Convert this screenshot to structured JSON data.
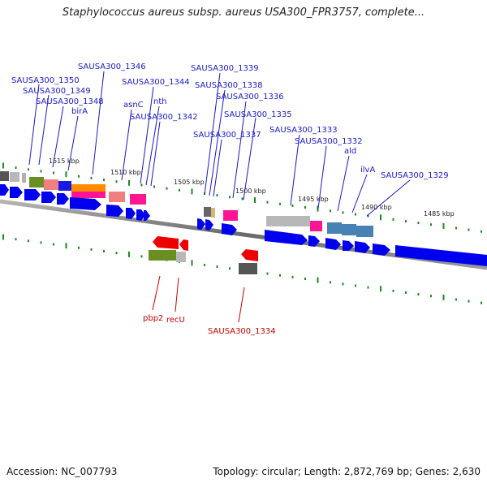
{
  "title": "Staphylococcus aureus subsp. aureus USA300_FPR3757, complete...",
  "footer": {
    "accession": "Accession: NC_007793",
    "topology": "Topology: circular; Length: 2,872,769 bp; Genes: 2,630"
  },
  "colors": {
    "forward_label": "#1a1acc",
    "reverse_label": "#cc0000",
    "forward_arrow": "#0000ee",
    "reverse_arrow": "#ee0000",
    "tick": "#1d8a1d",
    "backbone": "#808080"
  },
  "ticks": [
    "1515 kbp",
    "1510 kbp",
    "1505 kbp",
    "1500 kbp",
    "1495 kbp",
    "1490 kbp",
    "1485 kbp"
  ],
  "forward_labels": [
    "SAUSA300_1350",
    "SAUSA300_1349",
    "SAUSA300_1348",
    "birA",
    "SAUSA300_1346",
    "SAUSA300_1344",
    "asnC",
    "nth",
    "SAUSA300_1342",
    "SAUSA300_1339",
    "SAUSA300_1338",
    "SAUSA300_1336",
    "SAUSA300_1335",
    "SAUSA300_1337",
    "SAUSA300_1333",
    "SAUSA300_1332",
    "ald",
    "ilvA",
    "SAUSA300_1329"
  ],
  "reverse_labels": [
    "pbp2",
    "recU",
    "SAUSA300_1334"
  ]
}
